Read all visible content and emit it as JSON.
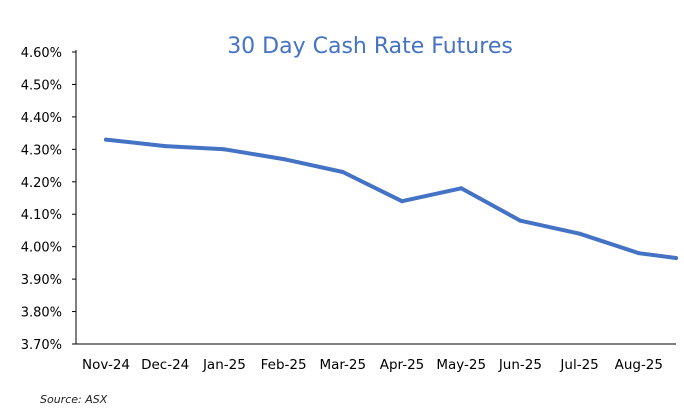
{
  "colors": {
    "line": "#4472C4",
    "title": "#4472C4",
    "axis": "#000000"
  },
  "chart_data": {
    "type": "line",
    "title": "30 Day Cash Rate Futures",
    "xlabel": "",
    "ylabel": "",
    "categories": [
      "Nov-24",
      "Dec-24",
      "Jan-25",
      "Feb-25",
      "Mar-25",
      "Apr-25",
      "May-25",
      "Jun-25",
      "Jul-25",
      "Aug-25"
    ],
    "y_tick_labels": [
      "3.70%",
      "3.80%",
      "3.90%",
      "4.00%",
      "4.10%",
      "4.20%",
      "4.30%",
      "4.40%",
      "4.50%",
      "4.60%"
    ],
    "ylim": [
      3.7,
      4.6
    ],
    "grid": false,
    "series": [
      {
        "x": [
          "Nov-24",
          "Dec-24",
          "Jan-25",
          "Feb-25",
          "Mar-25",
          "Apr-25",
          "May-25",
          "Jun-25",
          "Jul-25",
          "Aug-25",
          "Aug-25 (end)"
        ],
        "values": [
          4.33,
          4.31,
          4.3,
          4.27,
          4.23,
          4.14,
          4.18,
          4.08,
          4.04,
          3.98,
          3.965
        ]
      }
    ]
  },
  "source": "Source: ASX"
}
